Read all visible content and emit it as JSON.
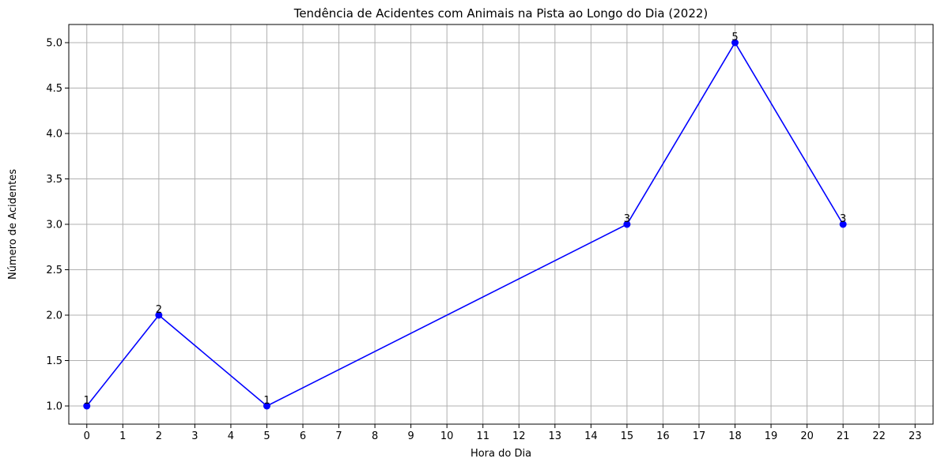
{
  "chart_data": {
    "type": "line",
    "title": "Tendência de Acidentes com Animais na Pista ao Longo do Dia (2022)",
    "xlabel": "Hora do Dia",
    "ylabel": "Número de Acidentes",
    "x": [
      0,
      2,
      5,
      15,
      18,
      21
    ],
    "y": [
      1,
      2,
      1,
      3,
      5,
      3
    ],
    "data_labels": [
      "1",
      "2",
      "1",
      "3",
      "5",
      "3"
    ],
    "xlim": [
      -0.5,
      23.5
    ],
    "ylim": [
      0.8,
      5.2
    ],
    "x_ticks": [
      0,
      1,
      2,
      3,
      4,
      5,
      6,
      7,
      8,
      9,
      10,
      11,
      12,
      13,
      14,
      15,
      16,
      17,
      18,
      19,
      20,
      21,
      22,
      23
    ],
    "x_tick_labels": [
      "0",
      "1",
      "2",
      "3",
      "4",
      "5",
      "6",
      "7",
      "8",
      "9",
      "10",
      "11",
      "12",
      "13",
      "14",
      "15",
      "16",
      "17",
      "18",
      "19",
      "20",
      "21",
      "22",
      "23"
    ],
    "y_ticks": [
      1.0,
      1.5,
      2.0,
      2.5,
      3.0,
      3.5,
      4.0,
      4.5,
      5.0
    ],
    "y_tick_labels": [
      "1.0",
      "1.5",
      "2.0",
      "2.5",
      "3.0",
      "3.5",
      "4.0",
      "4.5",
      "5.0"
    ],
    "grid": true,
    "line_color": "#0000ff",
    "marker": "circle",
    "grid_color": "#b0b0b0"
  }
}
